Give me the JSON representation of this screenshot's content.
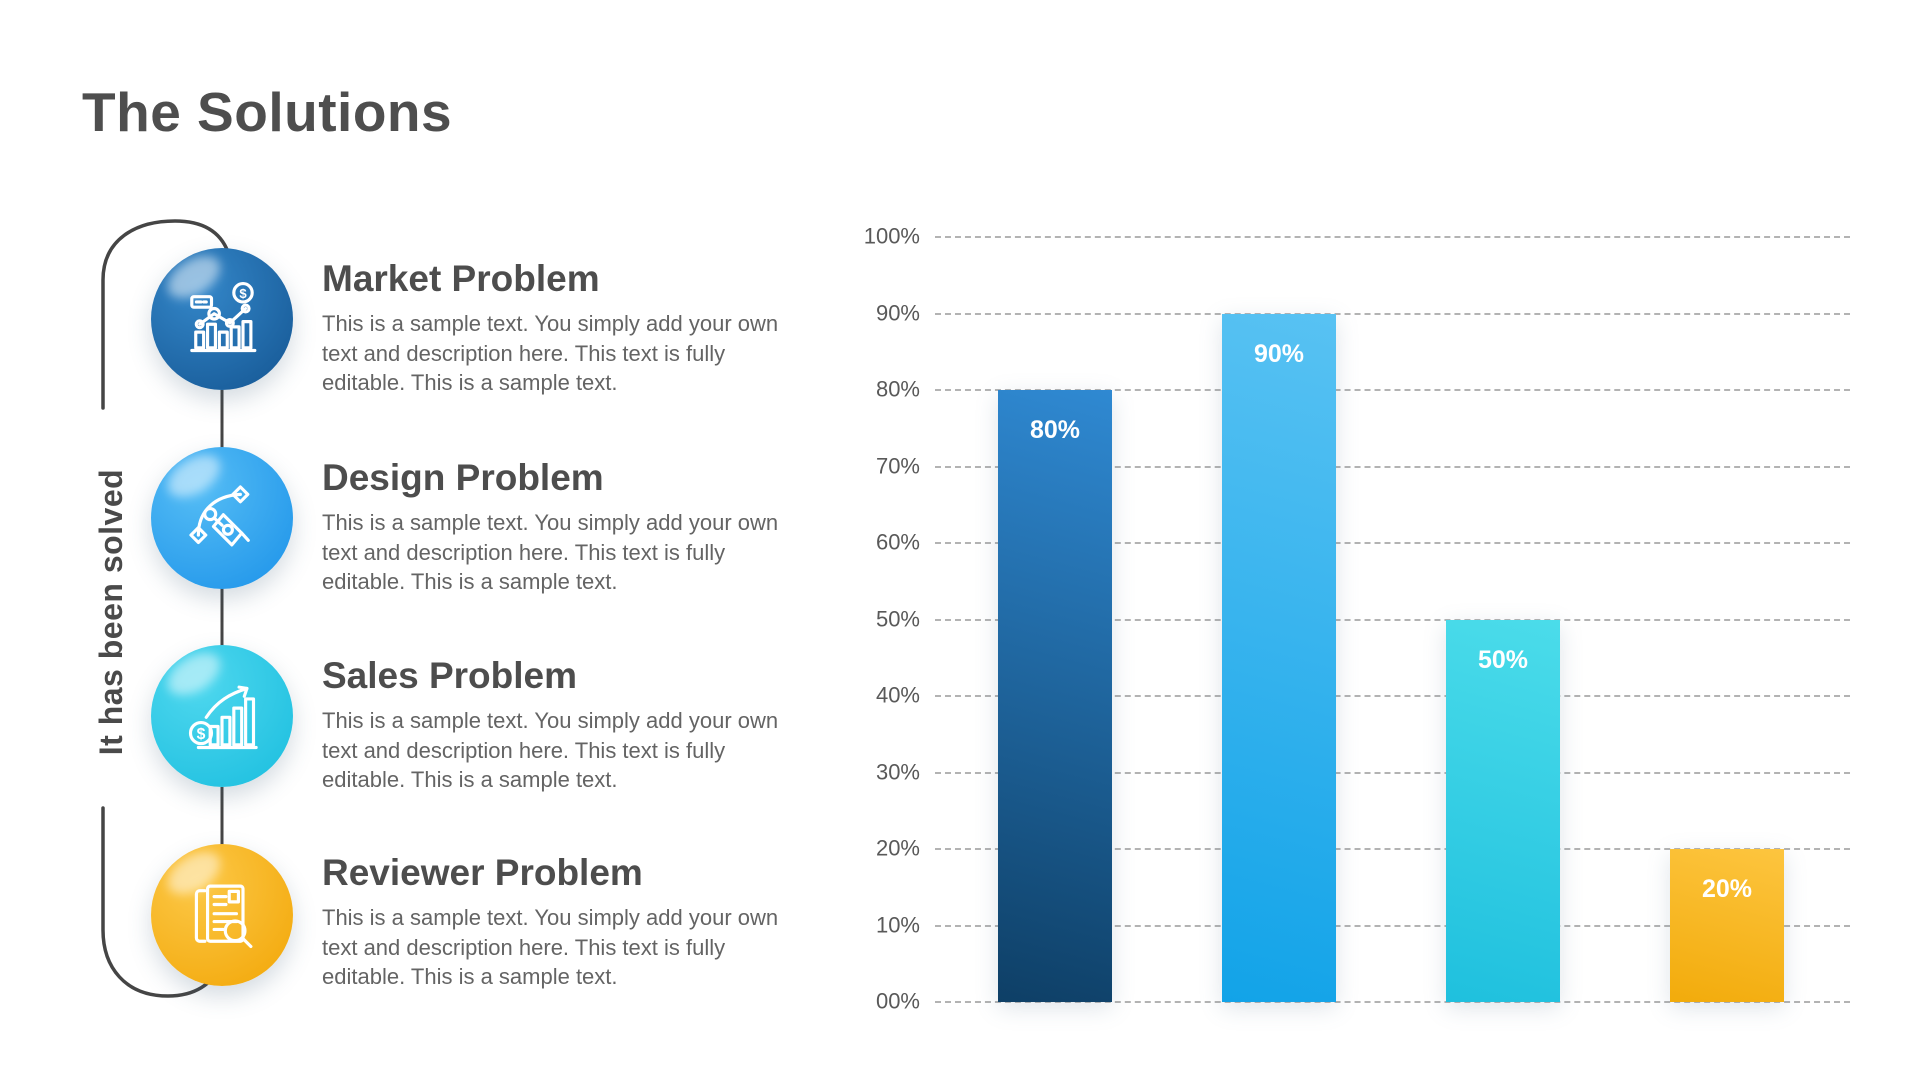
{
  "slide": {
    "title": "The Solutions",
    "background": "#ffffff"
  },
  "timeline": {
    "solved_label": "It has been solved",
    "line_color": "#454545",
    "items": [
      {
        "title": "Market Problem",
        "description": "This is a sample text. You simply add your own text and description here. This text is fully editable. This is a sample text.",
        "icon": "market-analytics-icon",
        "color_from": "#3487c9",
        "color_to": "#175a97"
      },
      {
        "title": "Design Problem",
        "description": "This is a sample text. You simply add your own text and description here. This text is fully editable. This is a sample text.",
        "icon": "pen-tool-icon",
        "color_from": "#55bdf5",
        "color_to": "#2196ea"
      },
      {
        "title": "Sales Problem",
        "description": "This is a sample text. You simply add your own text and description here. This text is fully editable. This is a sample text.",
        "icon": "sales-growth-icon",
        "color_from": "#4ed7ee",
        "color_to": "#1fc0e0"
      },
      {
        "title": "Reviewer Problem",
        "description": "This is a sample text. You simply add your own text and description here. This text is fully editable. This is a sample text.",
        "icon": "document-review-icon",
        "color_from": "#fcc847",
        "color_to": "#f3a90c"
      }
    ]
  },
  "chart_data": {
    "type": "bar",
    "values": [
      80,
      90,
      50,
      20
    ],
    "bar_labels": [
      "80%",
      "90%",
      "50%",
      "20%"
    ],
    "y_tick_labels": [
      "100%",
      "90%",
      "80%",
      "70%",
      "60%",
      "50%",
      "40%",
      "30%",
      "20%",
      "10%",
      "00%"
    ],
    "ylim": [
      0,
      100
    ],
    "grid": "horizontal-dashed",
    "legend": "none",
    "bar_gradients": [
      [
        "#2f89d2",
        "#0e3f66"
      ],
      [
        "#58c2f3",
        "#12a3e8"
      ],
      [
        "#4bdcea",
        "#1fc0de"
      ],
      [
        "#fdc53f",
        "#f2ab0b"
      ]
    ],
    "value_label_color": "#ffffff",
    "tick_label_color": "#595959"
  }
}
